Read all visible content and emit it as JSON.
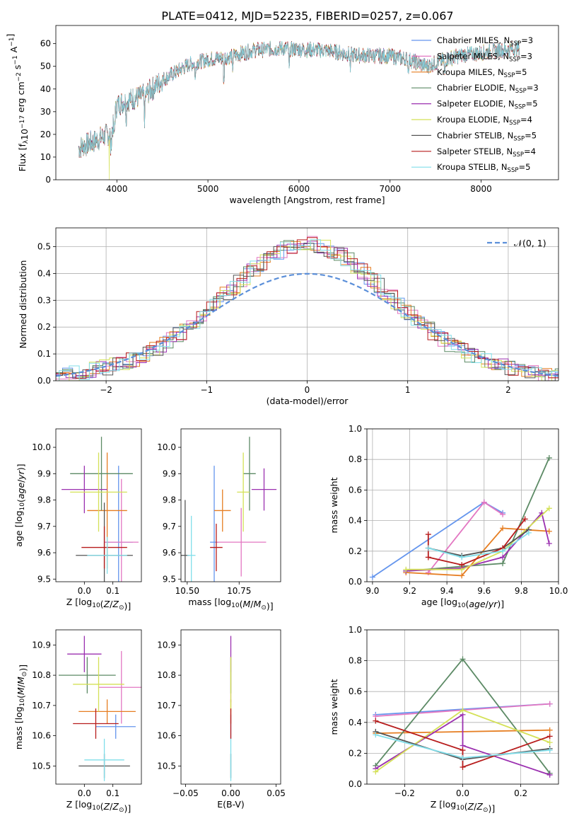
{
  "title": "PLATE=0412, MJD=52235, FIBERID=0257, z=0.067",
  "colors": [
    "#6495ED",
    "#E377C2",
    "#E67E22",
    "#5C8A65",
    "#9B30B0",
    "#D4E157",
    "#555555",
    "#B71C1C",
    "#80DEEA"
  ],
  "chart_data": [
    {
      "id": "spectrum",
      "type": "line",
      "xlabel": "wavelength [Angstrom, rest frame]",
      "ylabel": "Flux [f_λ10^-17 erg cm^-2 s^-1 A^-1]",
      "xlim": [
        3330,
        8850
      ],
      "ylim": [
        0,
        68
      ],
      "xticks": [
        4000,
        5000,
        6000,
        7000,
        8000
      ],
      "yticks": [
        0,
        10,
        20,
        30,
        40,
        50,
        60
      ],
      "legend_placement": "upper right",
      "x_range": [
        3580,
        8420
      ],
      "continuum": [
        [
          3580,
          14
        ],
        [
          3750,
          17
        ],
        [
          3900,
          20
        ],
        [
          3950,
          22
        ],
        [
          4000,
          33
        ],
        [
          4100,
          35
        ],
        [
          4300,
          37
        ],
        [
          4500,
          44
        ],
        [
          4800,
          51
        ],
        [
          5000,
          53
        ],
        [
          5200,
          54
        ],
        [
          5500,
          57
        ],
        [
          5800,
          58
        ],
        [
          6000,
          57.5
        ],
        [
          6300,
          57
        ],
        [
          6600,
          55
        ],
        [
          7000,
          54.5
        ],
        [
          7200,
          53
        ],
        [
          7400,
          50
        ],
        [
          7600,
          53
        ],
        [
          7800,
          55
        ],
        [
          8000,
          56
        ],
        [
          8200,
          57
        ],
        [
          8420,
          58
        ]
      ],
      "absorption_lines": [
        [
          3934,
          9
        ],
        [
          3969,
          8
        ],
        [
          4102,
          7
        ],
        [
          4305,
          10
        ],
        [
          4861,
          8
        ],
        [
          5175,
          12
        ],
        [
          5270,
          6
        ],
        [
          5893,
          10
        ],
        [
          6563,
          6
        ],
        [
          7200,
          5
        ],
        [
          7600,
          8
        ]
      ],
      "spikes": [
        {
          "x": 3915,
          "min": 0,
          "series": 5
        },
        {
          "x": 6790,
          "min": 0,
          "series": 5
        },
        {
          "x": 7410,
          "min": 0,
          "series": 7
        }
      ],
      "series": [
        {
          "name": "Chabrier MILES, N_SSP=3"
        },
        {
          "name": "Salpeter MILES, N_SSP=3"
        },
        {
          "name": "Kroupa MILES, N_SSP=5"
        },
        {
          "name": "Chabrier ELODIE, N_SSP=3"
        },
        {
          "name": "Salpeter ELODIE, N_SSP=5"
        },
        {
          "name": "Kroupa ELODIE, N_SSP=4"
        },
        {
          "name": "Chabrier STELIB, N_SSP=5"
        },
        {
          "name": "Salpeter STELIB, N_SSP=4"
        },
        {
          "name": "Kroupa STELIB, N_SSP=5"
        }
      ]
    },
    {
      "id": "residuals",
      "type": "histogram",
      "xlabel": "(data-model)/error",
      "ylabel": "Normed distribution",
      "xlim": [
        -2.5,
        2.5
      ],
      "ylim": [
        0,
        0.57
      ],
      "xticks": [
        -2,
        -1,
        0,
        1,
        2
      ],
      "yticks": [
        0.0,
        0.1,
        0.2,
        0.3,
        0.4,
        0.5
      ],
      "legend": "𝒩(0, 1)",
      "legend_placement": "upper right",
      "grid": true,
      "bin_width": 0.1,
      "normal_curve": {
        "mean": 0,
        "sigma": 1
      }
    },
    {
      "id": "age-vs-Z",
      "type": "errorbar",
      "xlabel": "Z [log10(Z/Z☉)]",
      "ylabel": "age [log10(age/yr)]",
      "xlim": [
        -0.1,
        0.2
      ],
      "ylim": [
        9.49,
        10.07
      ],
      "xticks": [
        0.0,
        0.1
      ],
      "yticks": [
        9.5,
        9.6,
        9.7,
        9.8,
        9.9,
        10.0
      ],
      "points": [
        {
          "x": 0.12,
          "y": 9.64,
          "xerr": 0.05,
          "yerr": 0.29
        },
        {
          "x": 0.13,
          "y": 9.64,
          "xerr": 0.06,
          "yerr": 0.24
        },
        {
          "x": 0.08,
          "y": 9.76,
          "xerr": 0.07,
          "yerr": 0.22
        },
        {
          "x": 0.06,
          "y": 9.9,
          "xerr": 0.11,
          "yerr": 0.14
        },
        {
          "x": 0.0,
          "y": 9.84,
          "xerr": 0.08,
          "yerr": 0.09
        },
        {
          "x": 0.05,
          "y": 9.83,
          "xerr": 0.1,
          "yerr": 0.15
        },
        {
          "x": 0.07,
          "y": 9.59,
          "xerr": 0.1,
          "yerr": 0.2
        },
        {
          "x": 0.07,
          "y": 9.62,
          "xerr": 0.08,
          "yerr": 0.08
        },
        {
          "x": 0.08,
          "y": 9.59,
          "xerr": 0.07,
          "yerr": 0.07
        }
      ]
    },
    {
      "id": "age-vs-mass",
      "type": "errorbar",
      "xlabel": "mass [log10(M/M☉)]",
      "ylabel": "",
      "xlim": [
        10.47,
        10.95
      ],
      "ylim": [
        9.49,
        10.07
      ],
      "xticks": [
        10.5,
        10.75
      ],
      "yticks": [
        9.5,
        9.6,
        9.7,
        9.8,
        9.9,
        10.0
      ],
      "points": [
        {
          "x": 10.63,
          "y": 9.64,
          "xerr": 0.02,
          "yerr": 0.29
        },
        {
          "x": 10.76,
          "y": 9.64,
          "xerr": 0.12,
          "yerr": 0.13
        },
        {
          "x": 10.67,
          "y": 9.76,
          "xerr": 0.04,
          "yerr": 0.08
        },
        {
          "x": 10.8,
          "y": 9.9,
          "xerr": 0.03,
          "yerr": 0.14
        },
        {
          "x": 10.87,
          "y": 9.84,
          "xerr": 0.06,
          "yerr": 0.08
        },
        {
          "x": 10.77,
          "y": 9.83,
          "xerr": 0.03,
          "yerr": 0.15
        },
        {
          "x": 10.49,
          "y": 9.59,
          "xerr": 0.02,
          "yerr": 0.21
        },
        {
          "x": 10.64,
          "y": 9.62,
          "xerr": 0.03,
          "yerr": 0.09
        },
        {
          "x": 10.52,
          "y": 9.59,
          "xerr": 0.02,
          "yerr": 0.15
        }
      ]
    },
    {
      "id": "mass-weight-vs-age",
      "type": "line",
      "xlabel": "age [log10(age/yr)]",
      "ylabel": "mass weight",
      "xlim": [
        8.97,
        10.0
      ],
      "ylim": [
        0,
        1.0
      ],
      "xticks": [
        9.0,
        9.2,
        9.4,
        9.6,
        9.8,
        10.0
      ],
      "yticks": [
        0.0,
        0.2,
        0.4,
        0.6,
        0.8,
        1.0
      ],
      "grid": true,
      "series": [
        {
          "x": [
            9.0,
            9.6,
            9.7
          ],
          "y": [
            0.03,
            0.52,
            0.45
          ]
        },
        {
          "x": [
            9.3,
            9.6,
            9.7
          ],
          "y": [
            0.06,
            0.52,
            0.44
          ]
        },
        {
          "x": [
            9.18,
            9.48,
            9.7,
            9.95
          ],
          "y": [
            0.06,
            0.04,
            0.35,
            0.33
          ]
        },
        {
          "x": [
            9.18,
            9.48,
            9.7,
            9.95
          ],
          "y": [
            0.07,
            0.1,
            0.12,
            0.81
          ]
        },
        {
          "x": [
            9.18,
            9.48,
            9.7,
            9.91,
            9.95
          ],
          "y": [
            0.07,
            0.09,
            0.16,
            0.45,
            0.25
          ]
        },
        {
          "x": [
            9.18,
            9.48,
            9.7,
            9.95
          ],
          "y": [
            0.08,
            0.08,
            0.2,
            0.48
          ]
        },
        {
          "x": [
            9.3,
            9.48,
            9.7,
            9.84
          ],
          "y": [
            0.22,
            0.17,
            0.22,
            0.34
          ]
        },
        {
          "x": [
            9.3,
            9.3,
            9.48,
            9.7,
            9.82
          ],
          "y": [
            0.31,
            0.16,
            0.11,
            0.22,
            0.41
          ]
        },
        {
          "x": [
            9.3,
            9.48,
            9.7,
            9.84
          ],
          "y": [
            0.22,
            0.16,
            0.2,
            0.32
          ]
        }
      ]
    },
    {
      "id": "mass-vs-Z",
      "type": "errorbar",
      "xlabel": "Z [log10(Z/Z☉)]",
      "ylabel": "mass [log10(M/M☉)]",
      "xlim": [
        -0.1,
        0.2
      ],
      "ylim": [
        10.44,
        10.95
      ],
      "xticks": [
        0.0,
        0.1
      ],
      "yticks": [
        10.5,
        10.6,
        10.7,
        10.8,
        10.9
      ],
      "points": [
        {
          "x": 0.11,
          "y": 10.63,
          "xerr": 0.07,
          "yerr": 0.04
        },
        {
          "x": 0.13,
          "y": 10.76,
          "xerr": 0.08,
          "yerr": 0.12
        },
        {
          "x": 0.08,
          "y": 10.68,
          "xerr": 0.1,
          "yerr": 0.04
        },
        {
          "x": 0.01,
          "y": 10.8,
          "xerr": 0.1,
          "yerr": 0.06
        },
        {
          "x": 0.0,
          "y": 10.87,
          "xerr": 0.06,
          "yerr": 0.06
        },
        {
          "x": 0.05,
          "y": 10.77,
          "xerr": 0.09,
          "yerr": 0.09
        },
        {
          "x": 0.07,
          "y": 10.5,
          "xerr": 0.09,
          "yerr": 0.04
        },
        {
          "x": 0.04,
          "y": 10.64,
          "xerr": 0.08,
          "yerr": 0.05
        },
        {
          "x": 0.07,
          "y": 10.52,
          "xerr": 0.07,
          "yerr": 0.07
        }
      ]
    },
    {
      "id": "mass-vs-ebv",
      "type": "errorbar",
      "xlabel": "E(B-V)",
      "ylabel": "",
      "xlim": [
        -0.055,
        0.055
      ],
      "ylim": [
        10.44,
        10.95
      ],
      "xticks": [
        -0.05,
        0.0,
        0.05
      ],
      "yticks": [
        10.5,
        10.6,
        10.7,
        10.8,
        10.9
      ],
      "points": [
        {
          "x": 0,
          "y": 10.63,
          "xerr": 0,
          "yerr": 0.04
        },
        {
          "x": 0,
          "y": 10.76,
          "xerr": 0,
          "yerr": 0.05
        },
        {
          "x": 0,
          "y": 10.68,
          "xerr": 0,
          "yerr": 0.04
        },
        {
          "x": 0,
          "y": 10.8,
          "xerr": 0,
          "yerr": 0.06
        },
        {
          "x": 0,
          "y": 10.87,
          "xerr": 0,
          "yerr": 0.06
        },
        {
          "x": 0,
          "y": 10.77,
          "xerr": 0,
          "yerr": 0.09
        },
        {
          "x": 0,
          "y": 10.5,
          "xerr": 0,
          "yerr": 0.04
        },
        {
          "x": 0,
          "y": 10.64,
          "xerr": 0,
          "yerr": 0.05
        },
        {
          "x": 0,
          "y": 10.52,
          "xerr": 0,
          "yerr": 0.07
        }
      ]
    },
    {
      "id": "mass-weight-vs-Z",
      "type": "line",
      "xlabel": "Z [log10(Z/Z☉)]",
      "ylabel": "mass weight",
      "xlim": [
        -0.33,
        0.33
      ],
      "ylim": [
        0,
        1.0
      ],
      "xticks": [
        -0.2,
        0.0,
        0.2
      ],
      "yticks": [
        0.0,
        0.2,
        0.4,
        0.6,
        0.8,
        1.0
      ],
      "grid": true,
      "series": [
        {
          "x": [
            -0.3,
            0.3
          ],
          "y": [
            0.45,
            0.52
          ]
        },
        {
          "x": [
            -0.3,
            0.3
          ],
          "y": [
            0.44,
            0.52
          ]
        },
        {
          "x": [
            -0.3,
            0.3
          ],
          "y": [
            0.33,
            0.35
          ]
        },
        {
          "x": [
            -0.3,
            0.0,
            0.3
          ],
          "y": [
            0.12,
            0.81,
            0.07
          ]
        },
        {
          "x": [
            -0.3,
            0.0,
            0.0,
            0.3
          ],
          "y": [
            0.1,
            0.45,
            0.25,
            0.06
          ]
        },
        {
          "x": [
            -0.3,
            0.0,
            0.3
          ],
          "y": [
            0.08,
            0.48,
            0.27
          ]
        },
        {
          "x": [
            -0.3,
            0.0,
            0.3
          ],
          "y": [
            0.34,
            0.16,
            0.23
          ]
        },
        {
          "x": [
            -0.3,
            0.0,
            0.0,
            0.3
          ],
          "y": [
            0.41,
            0.22,
            0.11,
            0.31
          ]
        },
        {
          "x": [
            -0.3,
            0.0,
            0.3
          ],
          "y": [
            0.32,
            0.17,
            0.22
          ]
        }
      ]
    }
  ]
}
